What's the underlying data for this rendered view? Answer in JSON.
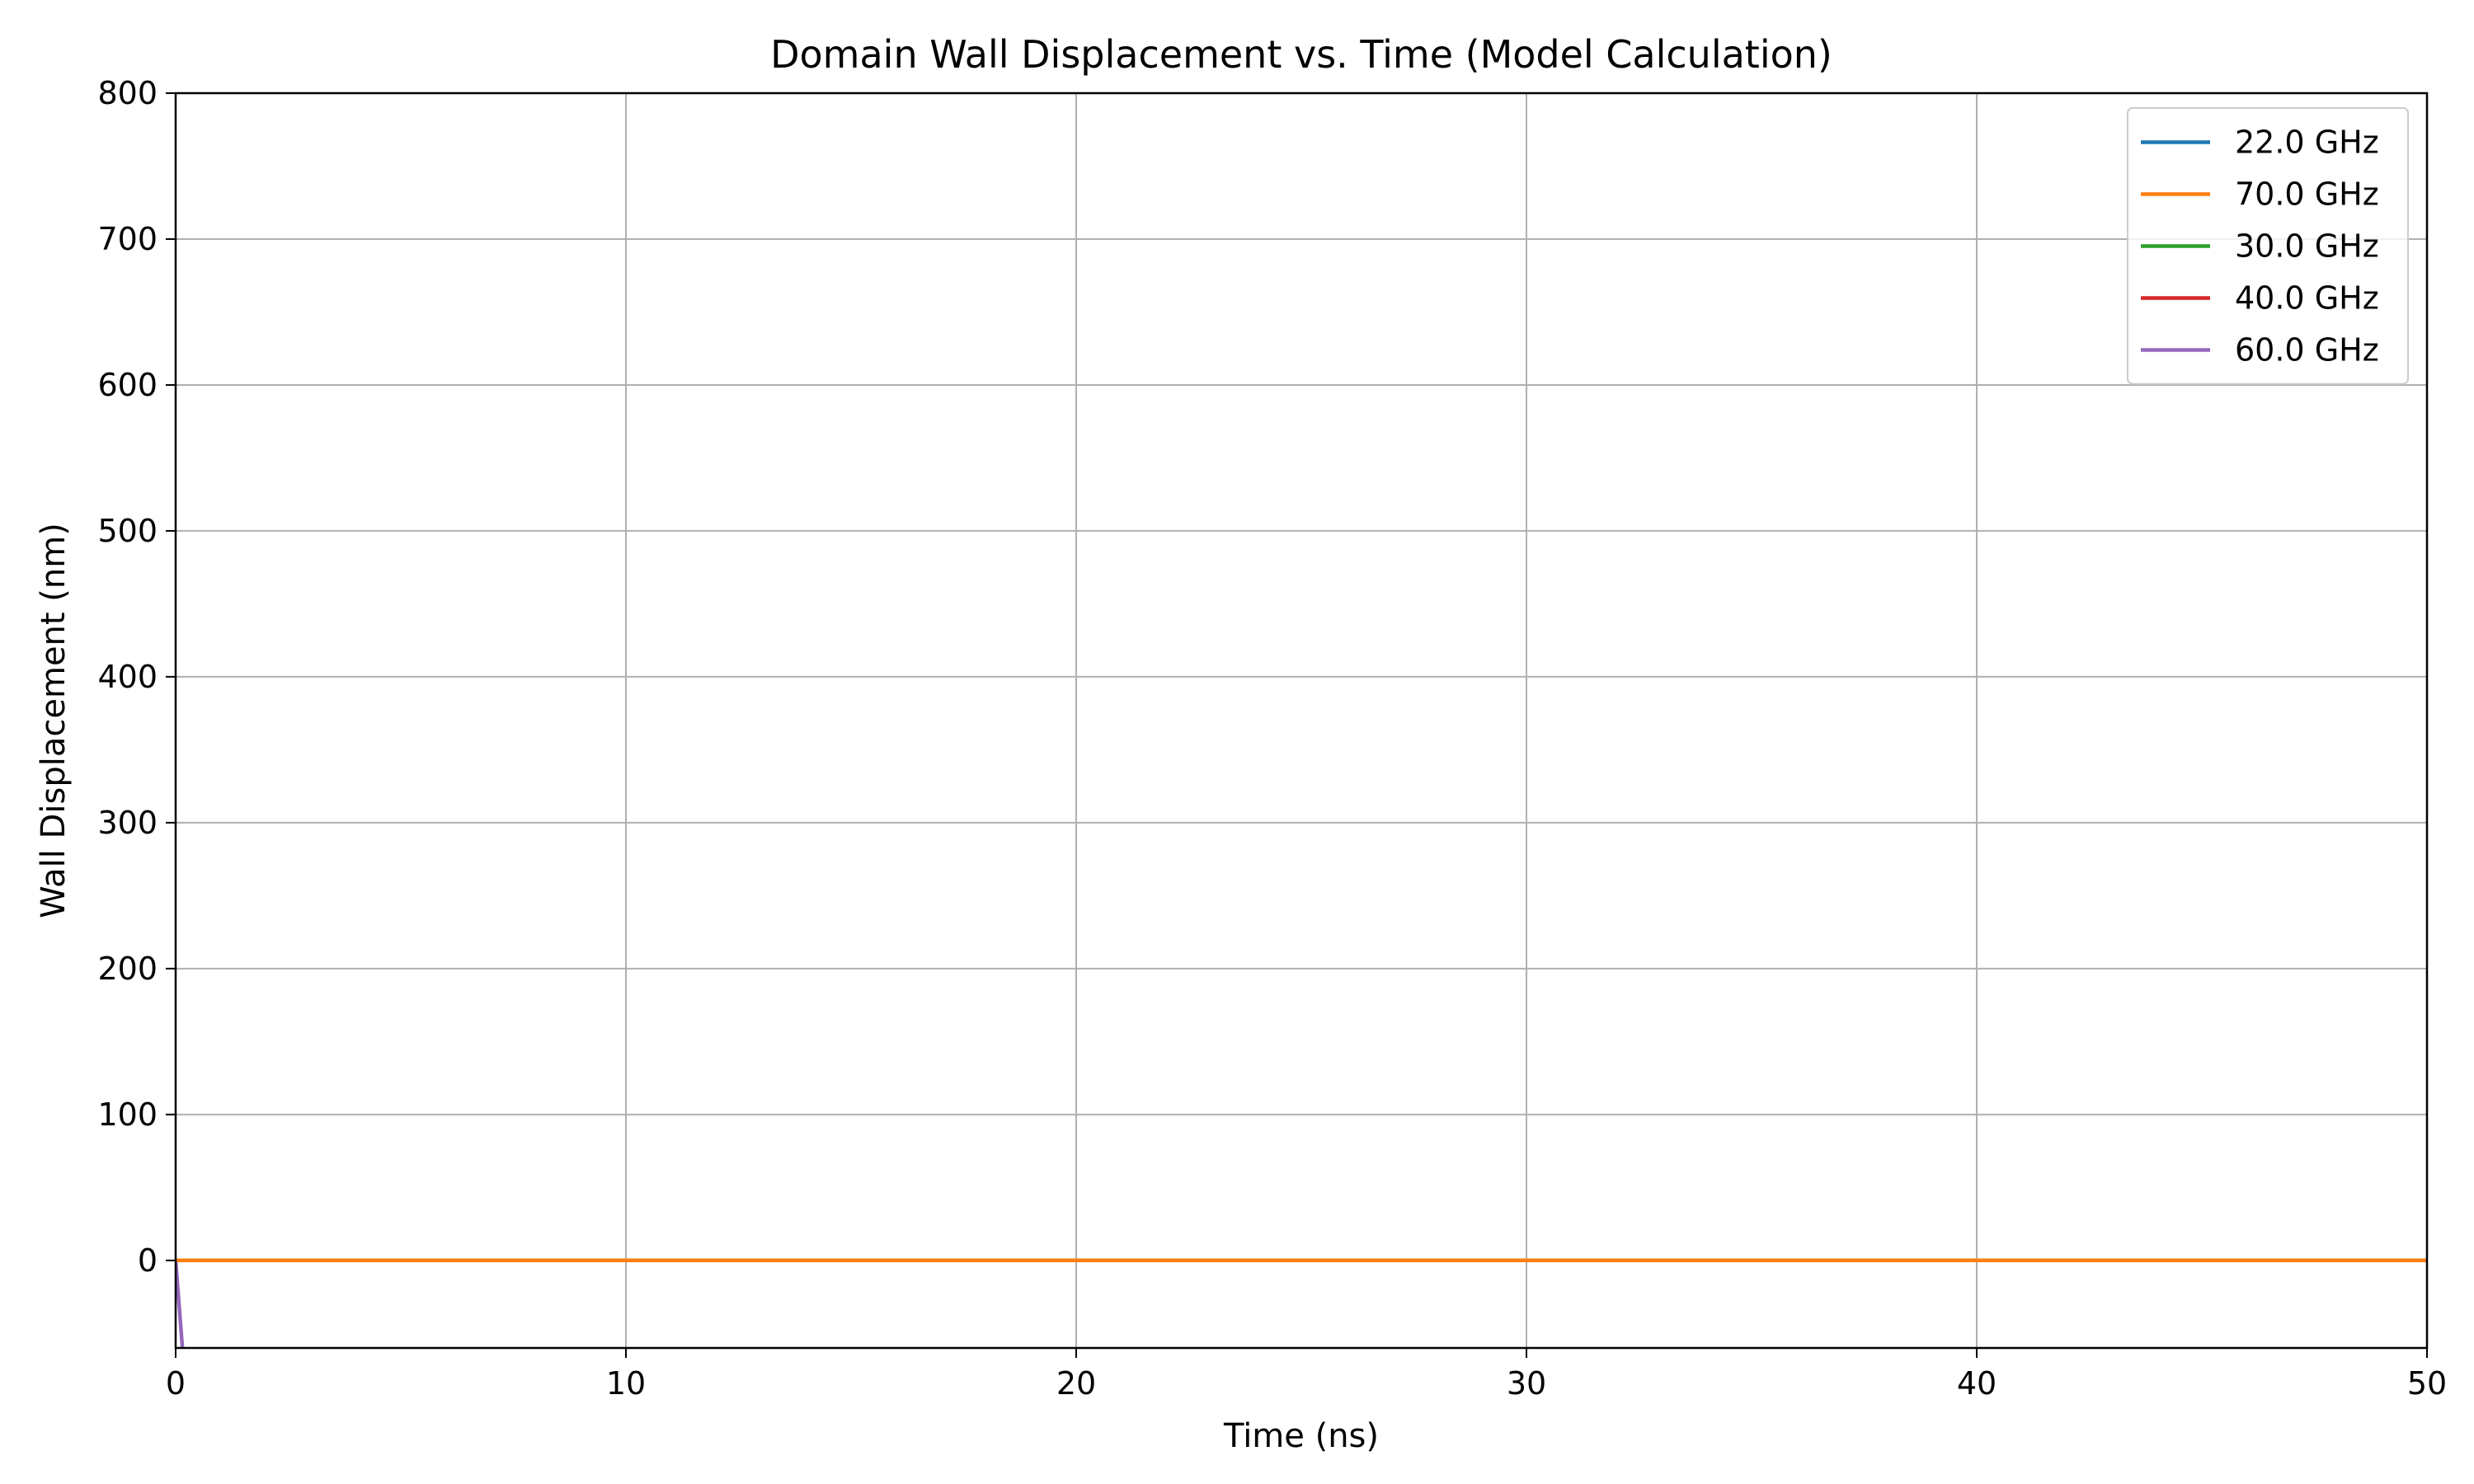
{
  "chart_data": {
    "type": "line",
    "title": "Domain Wall Displacement vs. Time (Model Calculation)",
    "xlabel": "Time (ns)",
    "ylabel": "Wall Displacement (nm)",
    "xlim": [
      0,
      50
    ],
    "ylim": [
      -60,
      800
    ],
    "xticks": [
      0,
      10,
      20,
      30,
      40,
      50
    ],
    "yticks": [
      0,
      100,
      200,
      300,
      400,
      500,
      600,
      700,
      800
    ],
    "grid": true,
    "legend_position": "top-right",
    "series": [
      {
        "name": "22.0 GHz",
        "color": "#1f77b4",
        "x": [
          0,
          50
        ],
        "y": [
          0,
          0
        ]
      },
      {
        "name": "70.0 GHz",
        "color": "#ff7f0e",
        "x": [
          0,
          50
        ],
        "y": [
          0,
          0
        ]
      },
      {
        "name": "30.0 GHz",
        "color": "#2ca02c",
        "x": [
          0,
          50
        ],
        "y": [
          0,
          0
        ]
      },
      {
        "name": "40.0 GHz",
        "color": "#d62728",
        "x": [
          0,
          50
        ],
        "y": [
          0,
          0
        ]
      },
      {
        "name": "60.0 GHz",
        "color": "#9467bd",
        "x": [
          0,
          0.15
        ],
        "y": [
          0,
          -60
        ]
      }
    ],
    "draw_order": [
      4,
      0,
      2,
      3,
      1
    ]
  }
}
